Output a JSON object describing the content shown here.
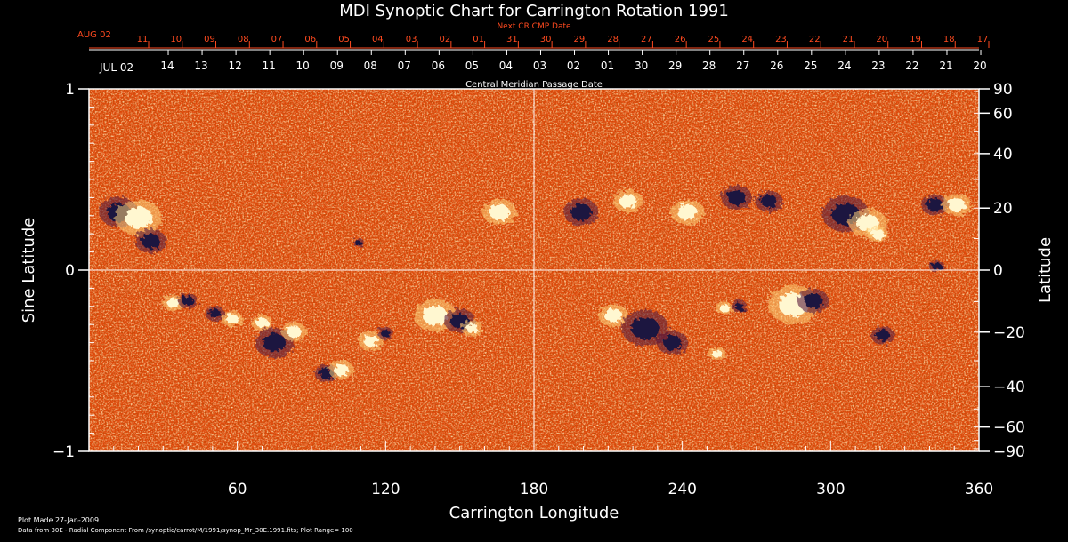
{
  "colors": {
    "background": "#000000",
    "axis": "#ffffff",
    "accent": "#ff4a1f",
    "map_base": "#e04a0c",
    "positive_polarity": "#fff7d0",
    "negative_polarity": "#1a1240"
  },
  "chart_data": {
    "type": "heatmap",
    "title": "MDI Synoptic Chart for Carrington Rotation 1991",
    "xlabel": "Carrington Longitude",
    "ylabel_left": "Sine Latitude",
    "ylabel_right": "Latitude",
    "xlim": [
      0,
      360
    ],
    "ylim": [
      -1,
      1
    ],
    "x_ticks": [
      "60",
      "120",
      "180",
      "240",
      "300",
      "360"
    ],
    "x_tick_values": [
      60,
      120,
      180,
      240,
      300,
      360
    ],
    "y_left_ticks": [
      "1",
      "0",
      "−1"
    ],
    "y_left_values": [
      1,
      0,
      -1
    ],
    "y_right_ticks": [
      "90",
      "60",
      "40",
      "20",
      "0",
      "−20",
      "−40",
      "−60",
      "−90"
    ],
    "y_right_values": [
      90,
      60,
      40,
      20,
      0,
      -20,
      -40,
      -60,
      -90
    ],
    "top_axis_cmp": {
      "label": "Central Meridian Passage Date",
      "start_label": "JUL 02",
      "days": [
        "14",
        "13",
        "12",
        "11",
        "10",
        "09",
        "08",
        "07",
        "06",
        "05",
        "04",
        "03",
        "02",
        "01",
        "30",
        "29",
        "28",
        "27",
        "26",
        "25",
        "24",
        "23",
        "22",
        "21",
        "20"
      ]
    },
    "top_axis_next": {
      "label": "Next CR CMP Date",
      "start_label": "AUG 02",
      "days": [
        "11",
        "10",
        "09",
        "08",
        "07",
        "06",
        "05",
        "04",
        "03",
        "02",
        "01",
        "31",
        "30",
        "29",
        "28",
        "27",
        "26",
        "25",
        "24",
        "23",
        "22",
        "21",
        "20",
        "19",
        "18",
        "17"
      ]
    },
    "plot_range": 100,
    "active_regions": [
      {
        "lon": 12,
        "sinlat": 0.32,
        "polarity": "neg",
        "size": 10
      },
      {
        "lon": 20,
        "sinlat": 0.29,
        "polarity": "pos",
        "size": 11
      },
      {
        "lon": 25,
        "sinlat": 0.16,
        "polarity": "neg",
        "size": 8
      },
      {
        "lon": 34,
        "sinlat": -0.18,
        "polarity": "pos",
        "size": 5
      },
      {
        "lon": 40,
        "sinlat": -0.17,
        "polarity": "neg",
        "size": 5
      },
      {
        "lon": 51,
        "sinlat": -0.24,
        "polarity": "neg",
        "size": 5
      },
      {
        "lon": 58,
        "sinlat": -0.27,
        "polarity": "pos",
        "size": 5
      },
      {
        "lon": 70,
        "sinlat": -0.29,
        "polarity": "pos",
        "size": 5
      },
      {
        "lon": 75,
        "sinlat": -0.4,
        "polarity": "neg",
        "size": 10
      },
      {
        "lon": 83,
        "sinlat": -0.34,
        "polarity": "pos",
        "size": 6
      },
      {
        "lon": 96,
        "sinlat": -0.57,
        "polarity": "neg",
        "size": 6
      },
      {
        "lon": 102,
        "sinlat": -0.55,
        "polarity": "pos",
        "size": 6
      },
      {
        "lon": 114,
        "sinlat": -0.39,
        "polarity": "pos",
        "size": 6
      },
      {
        "lon": 120,
        "sinlat": -0.35,
        "polarity": "neg",
        "size": 4
      },
      {
        "lon": 109,
        "sinlat": 0.15,
        "polarity": "neg",
        "size": 3
      },
      {
        "lon": 140,
        "sinlat": -0.25,
        "polarity": "pos",
        "size": 10
      },
      {
        "lon": 150,
        "sinlat": -0.28,
        "polarity": "neg",
        "size": 8
      },
      {
        "lon": 155,
        "sinlat": -0.32,
        "polarity": "pos",
        "size": 5
      },
      {
        "lon": 166,
        "sinlat": 0.32,
        "polarity": "pos",
        "size": 8
      },
      {
        "lon": 199,
        "sinlat": 0.32,
        "polarity": "neg",
        "size": 9
      },
      {
        "lon": 212,
        "sinlat": -0.25,
        "polarity": "pos",
        "size": 7
      },
      {
        "lon": 218,
        "sinlat": 0.38,
        "polarity": "pos",
        "size": 7
      },
      {
        "lon": 225,
        "sinlat": -0.32,
        "polarity": "neg",
        "size": 12
      },
      {
        "lon": 236,
        "sinlat": -0.4,
        "polarity": "neg",
        "size": 8
      },
      {
        "lon": 242,
        "sinlat": 0.32,
        "polarity": "pos",
        "size": 8
      },
      {
        "lon": 254,
        "sinlat": -0.46,
        "polarity": "pos",
        "size": 4
      },
      {
        "lon": 257,
        "sinlat": -0.21,
        "polarity": "pos",
        "size": 4
      },
      {
        "lon": 263,
        "sinlat": -0.2,
        "polarity": "neg",
        "size": 4
      },
      {
        "lon": 262,
        "sinlat": 0.4,
        "polarity": "neg",
        "size": 8
      },
      {
        "lon": 275,
        "sinlat": 0.38,
        "polarity": "neg",
        "size": 7
      },
      {
        "lon": 285,
        "sinlat": -0.19,
        "polarity": "pos",
        "size": 12
      },
      {
        "lon": 293,
        "sinlat": -0.17,
        "polarity": "neg",
        "size": 8
      },
      {
        "lon": 306,
        "sinlat": 0.31,
        "polarity": "neg",
        "size": 12
      },
      {
        "lon": 315,
        "sinlat": 0.26,
        "polarity": "pos",
        "size": 9
      },
      {
        "lon": 319,
        "sinlat": 0.2,
        "polarity": "pos",
        "size": 5
      },
      {
        "lon": 321,
        "sinlat": -0.36,
        "polarity": "neg",
        "size": 6
      },
      {
        "lon": 342,
        "sinlat": 0.36,
        "polarity": "neg",
        "size": 7
      },
      {
        "lon": 351,
        "sinlat": 0.36,
        "polarity": "pos",
        "size": 7
      },
      {
        "lon": 343,
        "sinlat": 0.02,
        "polarity": "neg",
        "size": 4
      }
    ]
  },
  "footer": {
    "made": "Plot Made 27-Jan-2009",
    "source": "Data from 30E - Radial Component From /synoptic/carrot/M/1991/synop_Mr_30E.1991.fits; Plot Range=  100"
  }
}
